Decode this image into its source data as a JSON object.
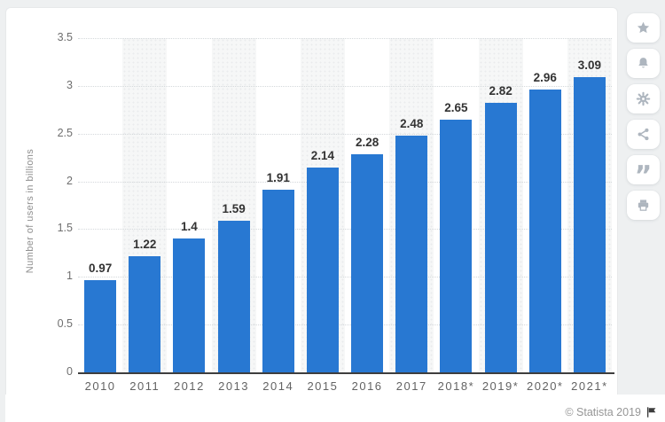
{
  "chart_data": {
    "type": "bar",
    "title": "",
    "xlabel": "",
    "ylabel": "Number of users in billions",
    "categories": [
      "2010",
      "2011",
      "2012",
      "2013",
      "2014",
      "2015",
      "2016",
      "2017",
      "2018*",
      "2019*",
      "2020*",
      "2021*"
    ],
    "values": [
      0.97,
      1.22,
      1.4,
      1.59,
      1.91,
      2.14,
      2.28,
      2.48,
      2.65,
      2.82,
      2.96,
      3.09
    ],
    "ylim": [
      0,
      3.5
    ],
    "yticks": [
      "3.5",
      "3",
      "2.5",
      "2",
      "1.5",
      "1",
      "0.5",
      "0"
    ],
    "bar_color": "#2878d2",
    "grid": "horizontal dotted lines, alternating vertical column shading",
    "legend": "none",
    "value_labels": "above each bar"
  },
  "sidebar": {
    "buttons": [
      {
        "name": "favorite-button",
        "icon": "star-icon"
      },
      {
        "name": "notifications-button",
        "icon": "bell-icon"
      },
      {
        "name": "settings-button",
        "icon": "gear-icon"
      },
      {
        "name": "share-button",
        "icon": "share-icon"
      },
      {
        "name": "cite-button",
        "icon": "quote-icon"
      },
      {
        "name": "print-button",
        "icon": "print-icon"
      }
    ]
  },
  "icons": {
    "quote_glyph": "”"
  },
  "footer": {
    "copyright": "© Statista 2019",
    "flag": "flag-icon"
  },
  "colors": {
    "bar": "#2878d2",
    "page_bg": "#eef0f1",
    "card_bg": "#ffffff",
    "band": "#f6f7f7",
    "gridline": "#d4d8db",
    "axis": "#3e3e3e",
    "tick_text": "#6e6e6e",
    "axis_title": "#8f8f8f",
    "value_label": "#333333",
    "toolbar_icon": "#aeb6bf",
    "copyright_text": "#969696",
    "flag_icon": "#3d3d3d"
  }
}
